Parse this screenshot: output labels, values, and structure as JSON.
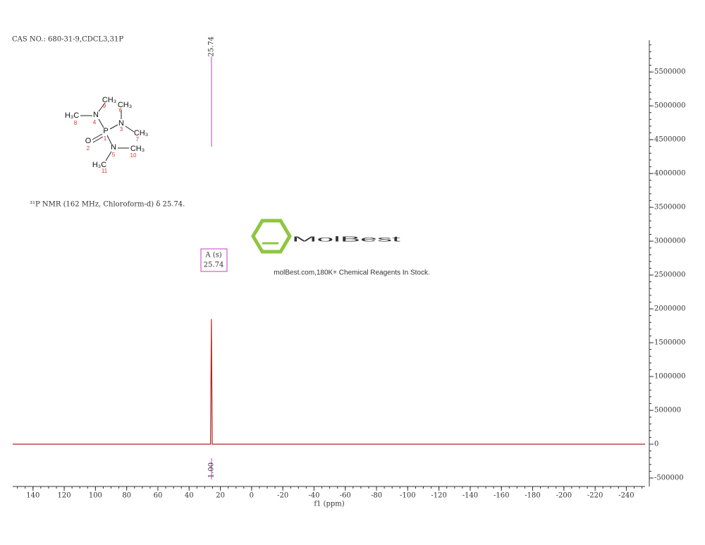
{
  "header": "CAS NO.: 680-31-9,CDCL3,31P",
  "structure": {
    "atoms": [
      "CH₃",
      "H₃C",
      "N",
      "CH₃",
      "N",
      "CH₃",
      "P",
      "O",
      "N",
      "CH₃",
      "H₃C"
    ],
    "locants": [
      "9",
      "8",
      "4",
      "6",
      "3",
      "7",
      "1",
      "2",
      "5",
      "10",
      "11"
    ]
  },
  "nmr_text": "³¹P NMR (162 MHz, Chloroform-d) δ 25.74.",
  "watermark": {
    "logo": "MolBest",
    "tagline": "molBest.com,180K+ Chemical Reagents In Stock."
  },
  "chart_data": {
    "type": "line",
    "x_label": "f1 (ppm)",
    "xlim": [
      153,
      -252
    ],
    "xticks": [
      140,
      120,
      100,
      80,
      60,
      40,
      20,
      0,
      -20,
      -40,
      -60,
      -80,
      -100,
      -120,
      -140,
      -160,
      -180,
      -200,
      -220,
      -240
    ],
    "ylim": [
      -625000,
      5970000
    ],
    "yticks": [
      -500000,
      0,
      500000,
      1000000,
      1500000,
      2000000,
      2500000,
      3000000,
      3500000,
      4000000,
      4500000,
      5000000,
      5500000
    ],
    "series": [
      {
        "name": "31P",
        "color": "#b22222",
        "x": [
          153,
          26.3,
          25.74,
          25.2,
          -252
        ],
        "values": [
          0,
          0,
          1850000,
          0,
          0
        ]
      }
    ],
    "peak_label": "25.74",
    "multiplet": {
      "label": "A (s)",
      "shift": "25.74"
    },
    "integral": "1.00"
  }
}
